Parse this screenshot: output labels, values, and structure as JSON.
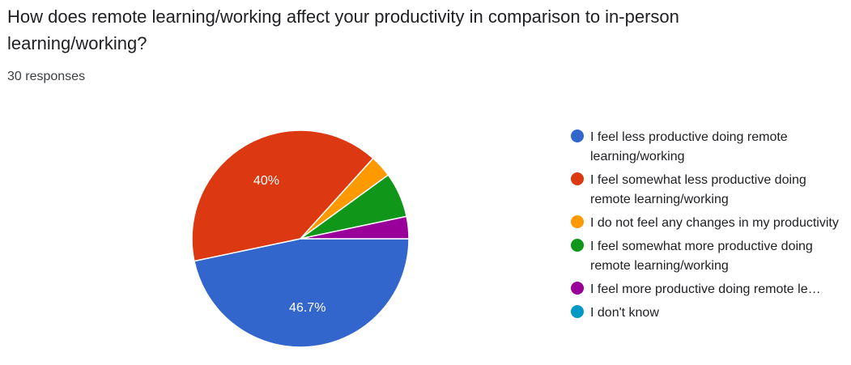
{
  "question": "How does remote learning/working affect your productivity in comparison to in-person learning/working?",
  "responses": "30 responses",
  "chart_data": {
    "type": "pie",
    "categories": [
      "I feel less productive doing remote learning/working",
      "I feel somewhat less productive doing remote learning/working",
      "I do not feel any changes in my productivity",
      "I feel somewhat more productive doing remote learning/working",
      "I feel more productive doing remote le…",
      "I don't know"
    ],
    "values": [
      46.7,
      40,
      3.3,
      6.7,
      3.3,
      0
    ],
    "data_labels": [
      "46.7%",
      "40%",
      "",
      "",
      "",
      ""
    ],
    "colors": [
      "#3366cc",
      "#dc3912",
      "#ff9900",
      "#109618",
      "#990099",
      "#0099c6"
    ],
    "legend_position": "right"
  }
}
